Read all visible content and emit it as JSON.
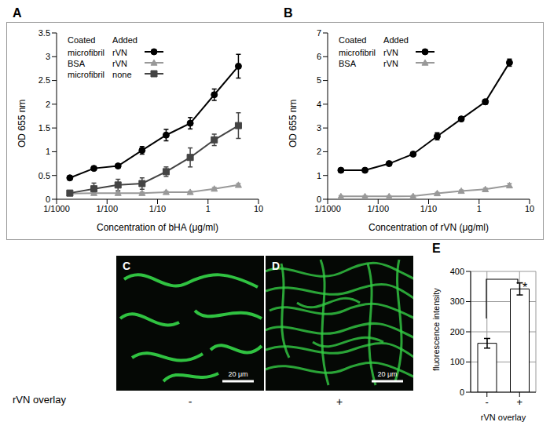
{
  "chart_data": [
    {
      "type": "line",
      "title": "A",
      "x_label": "Concentration of bHA (μg/ml)",
      "y_label": "OD 655 nm",
      "log": "x",
      "xlim": [
        0.001,
        10
      ],
      "xticks": [
        {
          "value": 0.001,
          "label": "1/1000"
        },
        {
          "value": 0.01,
          "label": "1/100"
        },
        {
          "value": 0.1,
          "label": "1/10"
        },
        1,
        10
      ],
      "ylim": [
        0,
        3.5
      ],
      "yticks": [
        0,
        0.5,
        1,
        1.5,
        2,
        2.5,
        3,
        3.5
      ],
      "grid": false,
      "legend": "upper left",
      "legend_header": [
        "Coated",
        "Added"
      ],
      "x": [
        0.00183,
        0.00549,
        0.0165,
        0.0494,
        0.148,
        0.444,
        1.33,
        4
      ],
      "series": [
        {
          "coated": "microfibril",
          "added": "rVN",
          "color": "#000000",
          "marker": "circle",
          "values": [
            0.45,
            0.65,
            0.7,
            1.03,
            1.35,
            1.6,
            2.2,
            2.8
          ],
          "errors": [
            0.03,
            0.03,
            0.04,
            0.08,
            0.12,
            0.12,
            0.12,
            0.25
          ]
        },
        {
          "coated": "BSA",
          "added": "rVN",
          "color": "#999999",
          "marker": "triangle",
          "values": [
            0.12,
            0.13,
            0.13,
            0.13,
            0.15,
            0.15,
            0.22,
            0.3
          ],
          "errors": [
            0.02,
            0.02,
            0.02,
            0.02,
            0.02,
            0.02,
            0.03,
            0.03
          ]
        },
        {
          "coated": "microfibril",
          "added": "none",
          "color": "#444444",
          "marker": "square",
          "values": [
            0.13,
            0.22,
            0.3,
            0.33,
            0.58,
            0.88,
            1.25,
            1.55
          ],
          "errors": [
            0.05,
            0.12,
            0.12,
            0.12,
            0.1,
            0.2,
            0.12,
            0.27
          ]
        }
      ]
    },
    {
      "type": "line",
      "title": "B",
      "x_label": "Concentration of rVN (μg/ml)",
      "y_label": "OD 655 nm",
      "log": "x",
      "xlim": [
        0.001,
        10
      ],
      "xticks": [
        {
          "value": 0.001,
          "label": "1/1000"
        },
        {
          "value": 0.01,
          "label": "1/100"
        },
        {
          "value": 0.1,
          "label": "1/10"
        },
        1,
        10
      ],
      "ylim": [
        0,
        7
      ],
      "yticks": [
        0,
        1,
        2,
        3,
        4,
        5,
        6,
        7
      ],
      "grid": false,
      "legend": "upper left",
      "legend_header": [
        "Coated",
        "Added"
      ],
      "x": [
        0.00183,
        0.00549,
        0.0165,
        0.0494,
        0.148,
        0.444,
        1.33,
        4
      ],
      "series": [
        {
          "coated": "microfibril",
          "added": "rVN",
          "color": "#000000",
          "marker": "circle",
          "values": [
            1.22,
            1.22,
            1.5,
            1.9,
            2.65,
            3.38,
            4.1,
            5.75
          ],
          "errors": [
            0.05,
            0.05,
            0.05,
            0.05,
            0.15,
            0.05,
            0.1,
            0.15
          ]
        },
        {
          "coated": "BSA",
          "added": "rVN",
          "color": "#999999",
          "marker": "triangle",
          "values": [
            0.12,
            0.12,
            0.12,
            0.13,
            0.25,
            0.35,
            0.42,
            0.58
          ],
          "errors": [
            0.03,
            0.03,
            0.03,
            0.03,
            0.04,
            0.04,
            0.05,
            0.08
          ]
        }
      ]
    },
    {
      "type": "bar",
      "title": "E",
      "x_label": "rVN overlay",
      "y_label": "fluorescence intensity",
      "categories": [
        "-",
        "+"
      ],
      "values": [
        162,
        342
      ],
      "errors": [
        16,
        20
      ],
      "color": "#ffffff",
      "ylim": [
        0,
        400
      ],
      "yticks": [
        0,
        100,
        200,
        300,
        400
      ],
      "grid": true,
      "annotation": "*"
    }
  ],
  "images": {
    "label": "rVN overlay",
    "panels": [
      {
        "title": "C",
        "overlay": "-",
        "scale_bar": "20 μm"
      },
      {
        "title": "D",
        "overlay": "+",
        "scale_bar": "20 μm"
      }
    ]
  }
}
